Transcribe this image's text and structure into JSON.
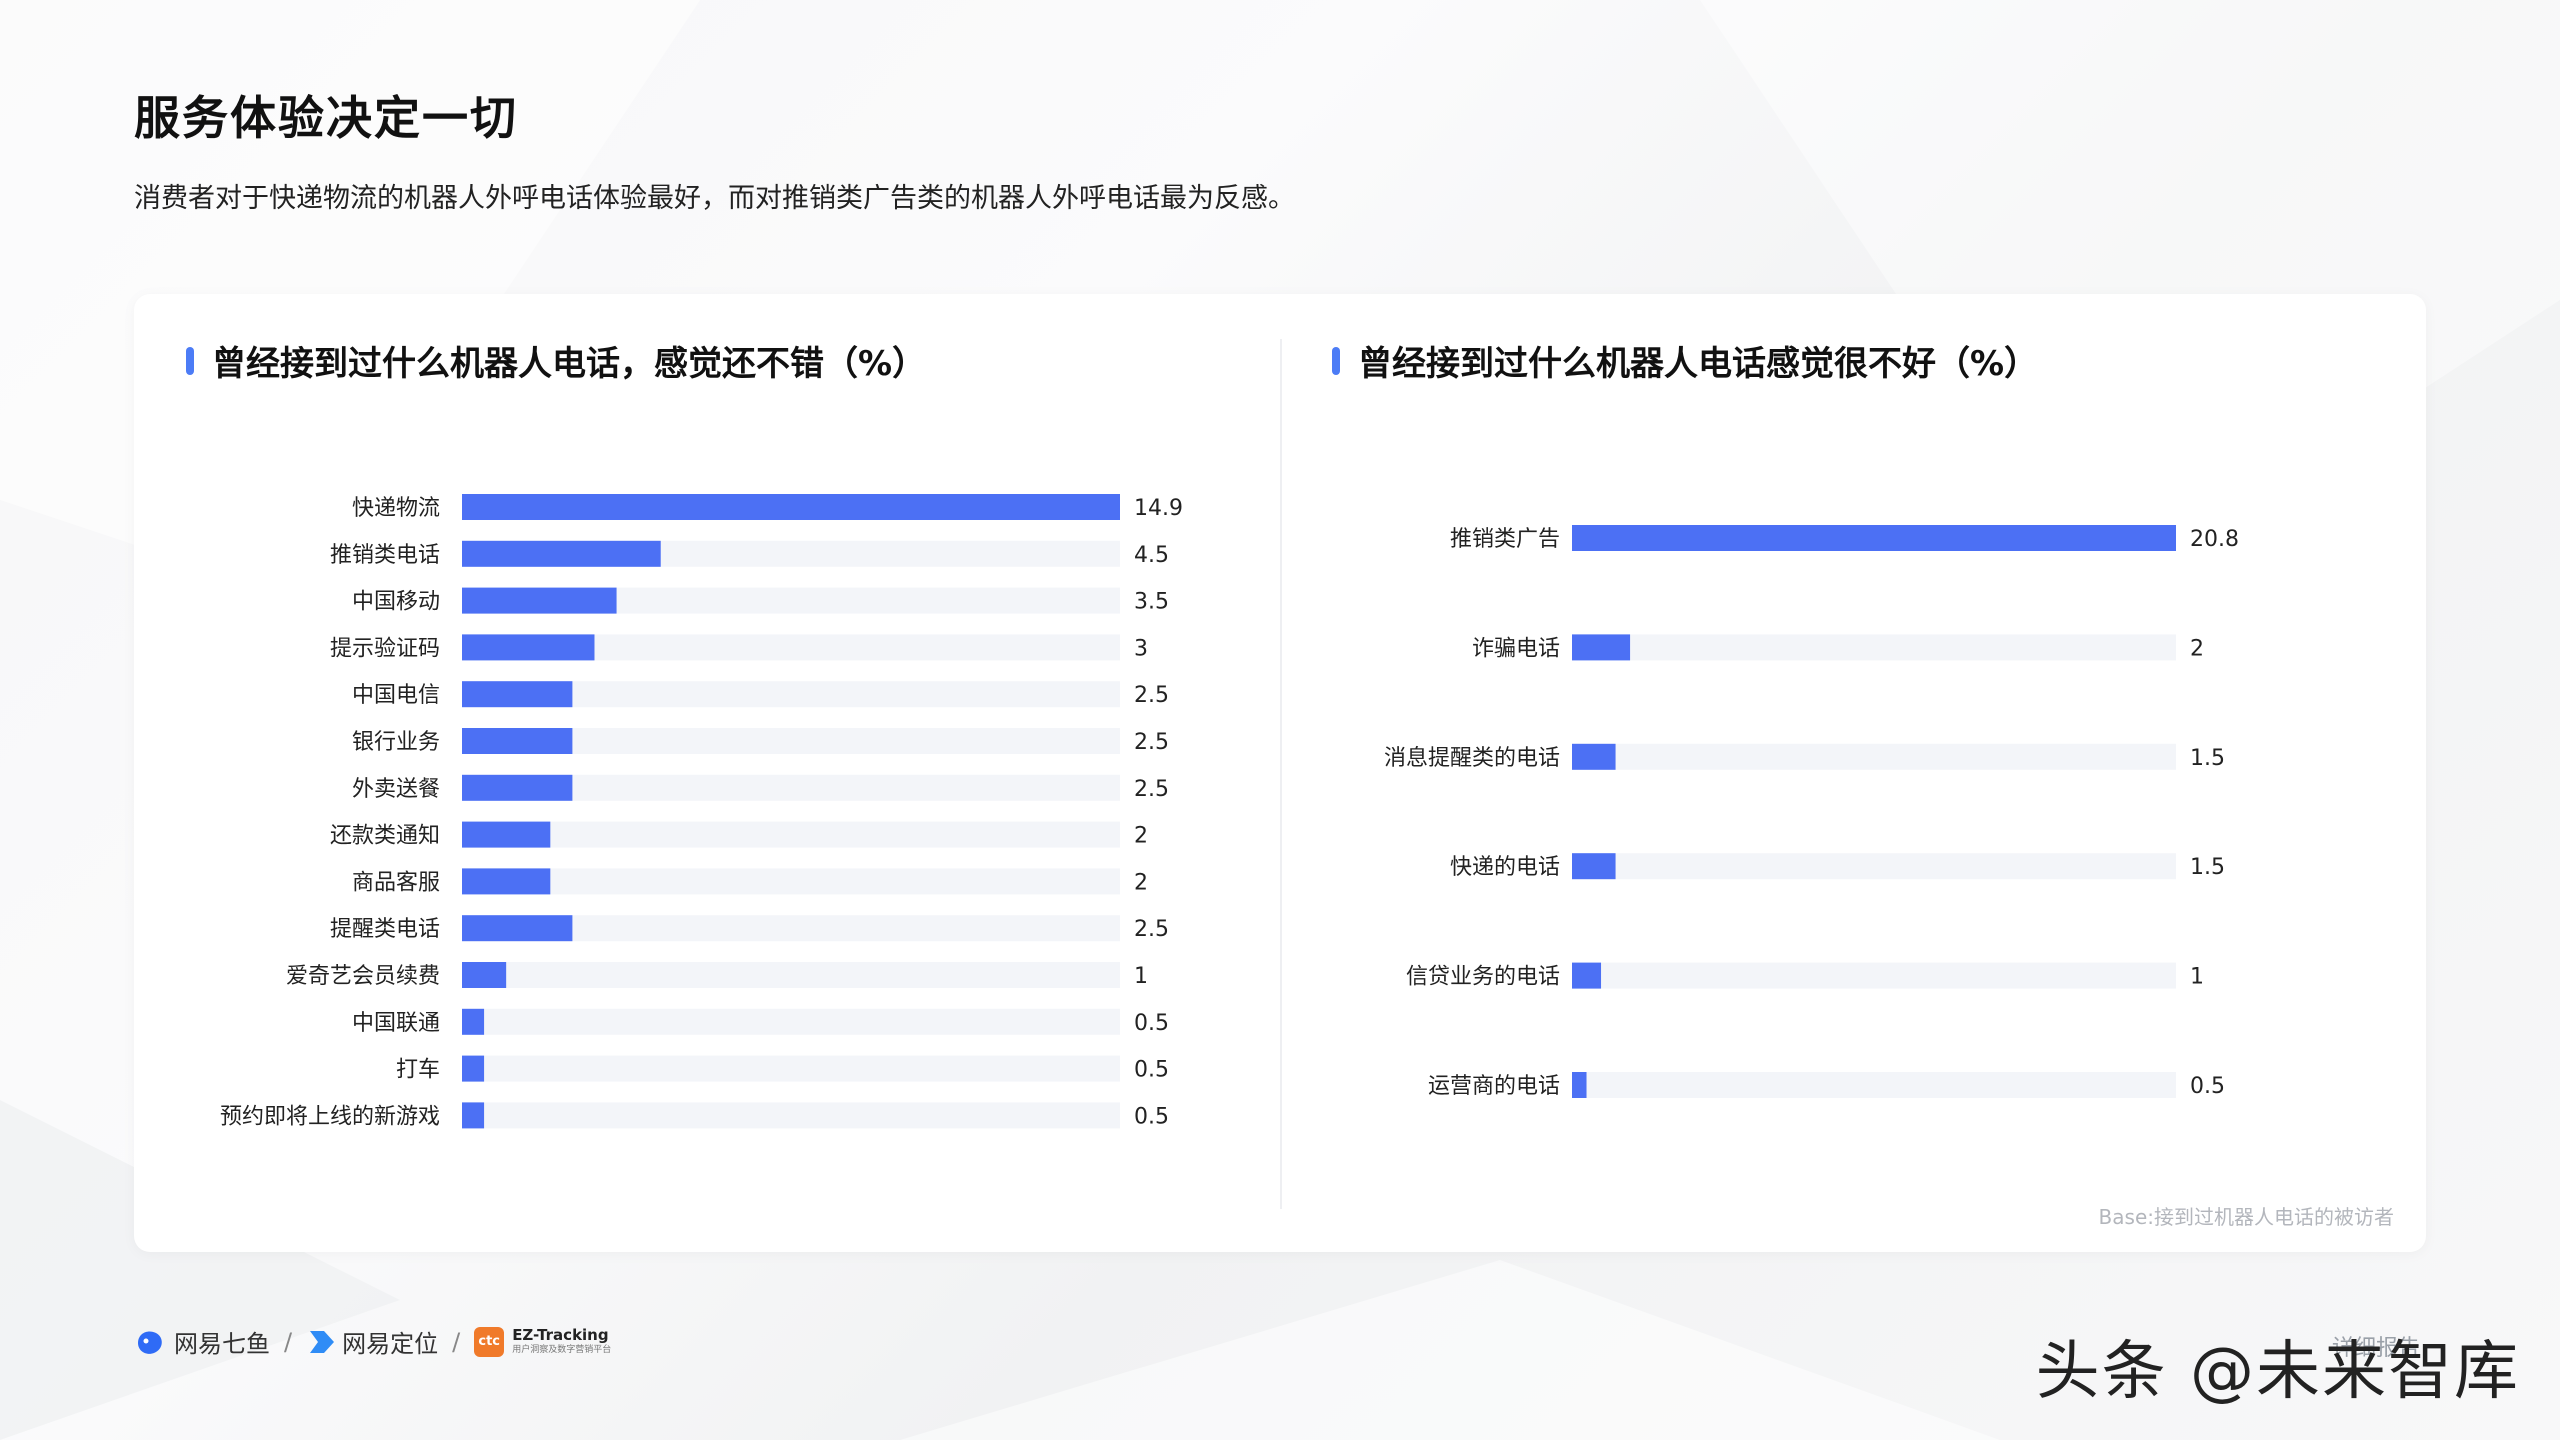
{
  "page": {
    "title": "服务体验决定一切",
    "subtitle": "消费者对于快递物流的机器人外呼电话体验最好，而对推销类广告类的机器人外呼电话最为反感。",
    "base_note": "Base:接到过机器人电话的被访者"
  },
  "colors": {
    "bar": "#4c70f4",
    "track": "#f3f5f9",
    "accent": "#4c7cf6"
  },
  "footer": {
    "brand1": "网易七鱼",
    "brand2": "网易定位",
    "brand3_icon": "ctc",
    "brand3_name": "EZ-Tracking",
    "brand3_sub": "用户洞察及数字营销平台",
    "separator": "/",
    "watermark": "头条 @未来智库",
    "watermark_behind": "详细报告"
  },
  "chart_data": [
    {
      "type": "bar",
      "orientation": "horizontal",
      "title": "曾经接到过什么机器人电话，感觉还不错（%）",
      "categories": [
        "快递物流",
        "推销类电话",
        "中国移动",
        "提示验证码",
        "中国电信",
        "银行业务",
        "外卖送餐",
        "还款类通知",
        "商品客服",
        "提醒类电话",
        "爱奇艺会员续费",
        "中国联通",
        "打车",
        "预约即将上线的新游戏"
      ],
      "values": [
        14.9,
        4.5,
        3.5,
        3,
        2.5,
        2.5,
        2.5,
        2,
        2,
        2.5,
        1,
        0.5,
        0.5,
        0.5
      ],
      "value_labels": [
        "14.9",
        "4.5",
        "3.5",
        "3",
        "2.5",
        "2.5",
        "2.5",
        "2",
        "2",
        "2.5",
        "1",
        "0.5",
        "0.5",
        "0.5"
      ],
      "xlim": [
        0,
        14.9
      ]
    },
    {
      "type": "bar",
      "orientation": "horizontal",
      "title": "曾经接到过什么机器人电话感觉很不好（%）",
      "categories": [
        "推销类广告",
        "诈骗电话",
        "消息提醒类的电话",
        "快递的电话",
        "信贷业务的电话",
        "运营商的电话"
      ],
      "values": [
        20.8,
        2,
        1.5,
        1.5,
        1,
        0.5
      ],
      "value_labels": [
        "20.8",
        "2",
        "1.5",
        "1.5",
        "1",
        "0.5"
      ],
      "xlim": [
        0,
        20.8
      ]
    }
  ]
}
